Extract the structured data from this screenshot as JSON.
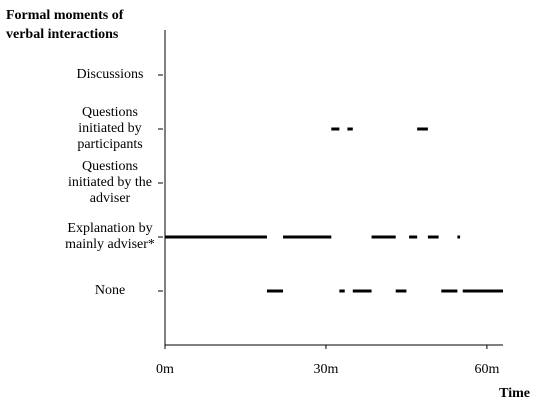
{
  "chart_data": {
    "type": "timeline",
    "y_label": [
      "Formal moments of",
      "verbal interactions"
    ],
    "x_label": "Time",
    "color": "#000000",
    "xlim": [
      0,
      63
    ],
    "xticks": [
      {
        "value": 0,
        "label": "0m"
      },
      {
        "value": 30,
        "label": "30m"
      },
      {
        "value": 60,
        "label": "60m"
      }
    ],
    "rows": [
      {
        "label": [
          "Discussions"
        ],
        "segments": []
      },
      {
        "label": [
          "Questions",
          "initiated by",
          "participants"
        ],
        "segments": [
          [
            31,
            32.5
          ],
          [
            34,
            35
          ],
          [
            47,
            49
          ]
        ]
      },
      {
        "label": [
          "Questions",
          "initiated by the",
          "adviser"
        ],
        "segments": []
      },
      {
        "label": [
          "Explanation by",
          "mainly adviser*"
        ],
        "segments": [
          [
            0,
            19
          ],
          [
            22,
            31
          ],
          [
            38.5,
            43
          ],
          [
            45.5,
            47
          ],
          [
            49,
            51
          ],
          [
            54.5,
            55
          ]
        ]
      },
      {
        "label": [
          "None"
        ],
        "segments": [
          [
            19,
            22
          ],
          [
            32.5,
            33.5
          ],
          [
            35,
            38.5
          ],
          [
            43,
            45
          ],
          [
            51.5,
            54.5
          ],
          [
            55.5,
            63
          ]
        ]
      }
    ]
  }
}
